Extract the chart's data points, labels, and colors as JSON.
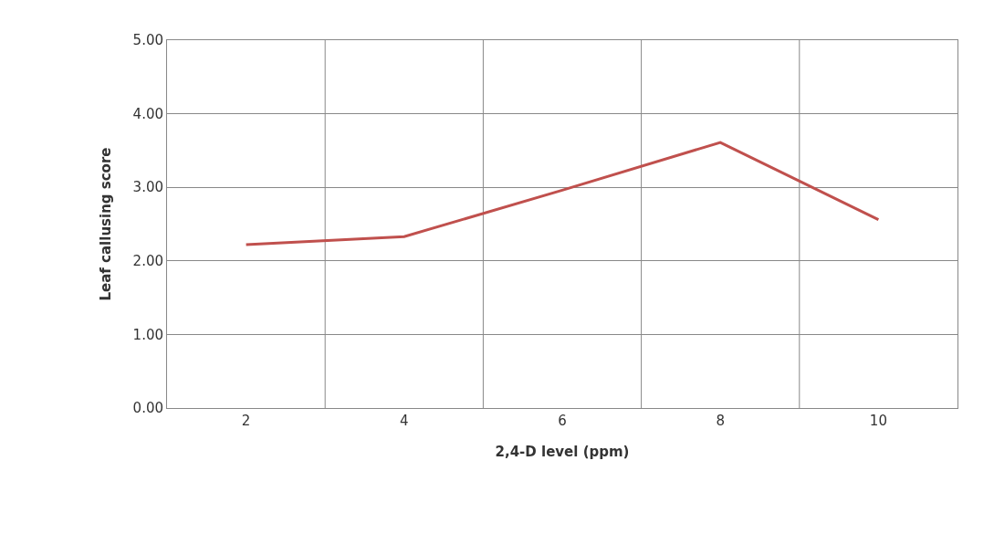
{
  "chart_data": {
    "type": "line",
    "xlabel": "2,4-D level (ppm)",
    "ylabel": "Leaf callusing score",
    "categories": [
      "2",
      "4",
      "6",
      "8",
      "10"
    ],
    "series": [
      {
        "color": "#c0504d",
        "values": [
          2.22,
          2.33,
          2.96,
          3.61,
          2.56
        ]
      }
    ],
    "ylim": [
      0,
      5
    ],
    "yticks": [
      {
        "value": 0,
        "label": "0.00"
      },
      {
        "value": 1,
        "label": "1.00"
      },
      {
        "value": 2,
        "label": "2.00"
      },
      {
        "value": 3,
        "label": "3.00"
      },
      {
        "value": 4,
        "label": "4.00"
      },
      {
        "value": 5,
        "label": "5.00"
      }
    ],
    "grid": true,
    "marker": "none",
    "line_style": "solid"
  }
}
